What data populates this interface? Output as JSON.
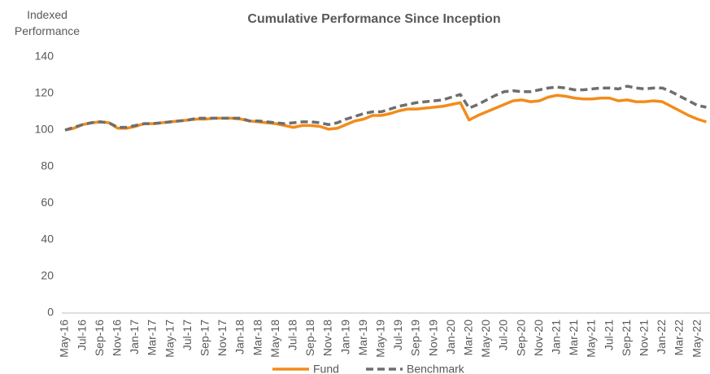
{
  "chart_data": {
    "type": "line",
    "title": "Cumulative Performance Since Inception",
    "y_label": "Indexed Performance",
    "categories": [
      "May-16",
      null,
      "Jul-16",
      null,
      "Sep-16",
      null,
      "Nov-16",
      null,
      "Jan-17",
      null,
      "Mar-17",
      null,
      "May-17",
      null,
      "Jul-17",
      null,
      "Sep-17",
      null,
      "Nov-17",
      null,
      "Jan-18",
      null,
      "Mar-18",
      null,
      "May-18",
      null,
      "Jul-18",
      null,
      "Sep-18",
      null,
      "Nov-18",
      null,
      "Jan-19",
      null,
      "Mar-19",
      null,
      "May-19",
      null,
      "Jul-19",
      null,
      "Sep-19",
      null,
      "Nov-19",
      null,
      "Jan-20",
      null,
      "Mar-20",
      null,
      "May-20",
      null,
      "Jul-20",
      null,
      "Sep-20",
      null,
      "Nov-20",
      null,
      "Jan-21",
      null,
      "Mar-21",
      null,
      "May-21",
      null,
      "Jul-21",
      null,
      "Sep-21",
      null,
      "Nov-21",
      null,
      "Jan-22",
      null,
      "Mar-22",
      null,
      "May-22",
      null
    ],
    "series": [
      {
        "name": "Fund",
        "color": "#f28c1b",
        "dashed": false,
        "values": [
          100,
          101,
          103,
          104,
          104.5,
          104,
          101,
          101,
          102,
          103.5,
          103.5,
          104,
          104.5,
          105,
          105.5,
          106,
          106,
          106.5,
          106.5,
          106.5,
          106,
          105,
          104.5,
          104,
          103.5,
          102.5,
          101.5,
          102.5,
          102.5,
          102,
          100.5,
          101,
          103,
          105,
          106,
          108,
          108,
          109,
          110.5,
          111.5,
          111.5,
          112,
          112.5,
          113,
          114,
          115,
          105.5,
          108,
          110,
          112,
          114,
          116,
          116.5,
          115.5,
          116,
          118,
          119,
          118.5,
          117.5,
          117,
          117,
          117.5,
          117.5,
          116,
          116.5,
          115.5,
          115.5,
          116,
          115.5,
          113,
          110.5,
          108,
          106,
          104.5
        ]
      },
      {
        "name": "Benchmark",
        "color": "#6e6e6e",
        "dashed": true,
        "values": [
          100,
          101.5,
          103,
          104,
          104.5,
          104,
          101.5,
          101.5,
          102.5,
          103.5,
          103.5,
          104,
          104.5,
          105,
          105.5,
          106.5,
          106.5,
          106.5,
          106.5,
          106.5,
          106.5,
          105,
          105,
          104.5,
          104,
          103.5,
          104,
          104.5,
          104.5,
          104,
          103,
          104,
          106,
          107.5,
          109,
          110,
          110,
          111.5,
          113,
          114,
          115,
          115.5,
          116,
          116.5,
          118,
          119.5,
          112,
          114,
          116.5,
          119,
          121,
          121.5,
          121,
          121,
          122,
          123,
          123.5,
          123,
          122,
          122,
          122.5,
          123,
          123,
          122.5,
          124,
          123,
          122.5,
          123,
          123,
          121,
          118.5,
          116,
          113.5,
          112.5
        ]
      }
    ],
    "ylim": [
      0,
      140
    ],
    "yticks": [
      0,
      20,
      40,
      60,
      80,
      100,
      120,
      140
    ],
    "grid": false,
    "legend": "bottom"
  }
}
